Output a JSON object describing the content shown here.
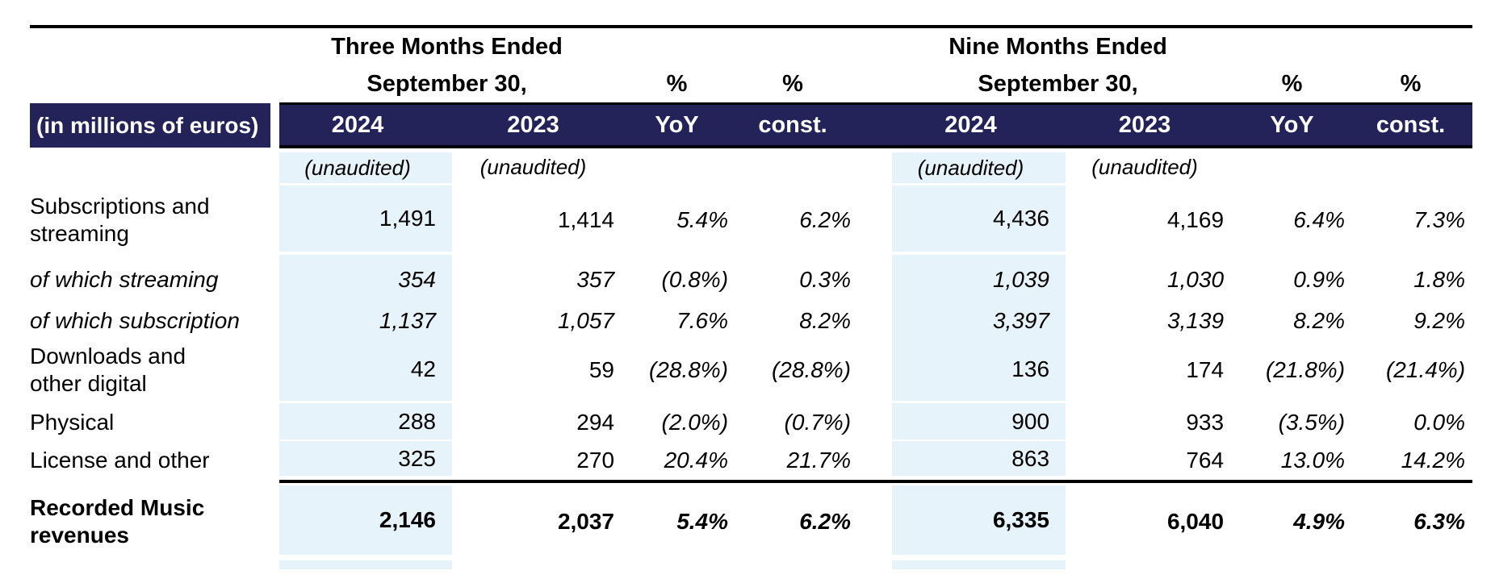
{
  "colors": {
    "navy": "#232259",
    "light_blue": "#e7f3fa",
    "rule_black": "#000000"
  },
  "header": {
    "unit_label": "(in millions of euros)",
    "pct": "%",
    "unaudited": "(unaudited)",
    "groups": [
      {
        "line1": "Three Months Ended",
        "line2": "September 30,"
      },
      {
        "line1": "Nine Months Ended",
        "line2": "September 30,"
      }
    ],
    "columns": {
      "y2024": "2024",
      "y2023": "2023",
      "yoy": "YoY",
      "const_": "const."
    }
  },
  "rows": [
    {
      "label": "Subscriptions and\nstreaming",
      "tm": {
        "y2024": "1,491",
        "y2023": "1,414",
        "yoy": "5.4%",
        "const_": "6.2%"
      },
      "nm": {
        "y2024": "4,436",
        "y2023": "4,169",
        "yoy": "6.4%",
        "const_": "7.3%"
      }
    },
    {
      "label": "of which streaming",
      "tm": {
        "y2024": "354",
        "y2023": "357",
        "yoy": "(0.8%)",
        "const_": "0.3%"
      },
      "nm": {
        "y2024": "1,039",
        "y2023": "1,030",
        "yoy": "0.9%",
        "const_": "1.8%"
      }
    },
    {
      "label": "of which subscription",
      "tm": {
        "y2024": "1,137",
        "y2023": "1,057",
        "yoy": "7.6%",
        "const_": "8.2%"
      },
      "nm": {
        "y2024": "3,397",
        "y2023": "3,139",
        "yoy": "8.2%",
        "const_": "9.2%"
      }
    },
    {
      "label": "Downloads and\nother digital",
      "tm": {
        "y2024": "42",
        "y2023": "59",
        "yoy": "(28.8%)",
        "const_": "(28.8%)"
      },
      "nm": {
        "y2024": "136",
        "y2023": "174",
        "yoy": "(21.8%)",
        "const_": "(21.4%)"
      }
    },
    {
      "label": "Physical",
      "tm": {
        "y2024": "288",
        "y2023": "294",
        "yoy": "(2.0%)",
        "const_": "(0.7%)"
      },
      "nm": {
        "y2024": "900",
        "y2023": "933",
        "yoy": "(3.5%)",
        "const_": "0.0%"
      }
    },
    {
      "label": "License and other",
      "tm": {
        "y2024": "325",
        "y2023": "270",
        "yoy": "20.4%",
        "const_": "21.7%"
      },
      "nm": {
        "y2024": "863",
        "y2023": "764",
        "yoy": "13.0%",
        "const_": "14.2%"
      }
    },
    {
      "label": "Recorded Music\nrevenues",
      "tm": {
        "y2024": "2,146",
        "y2023": "2,037",
        "yoy": "5.4%",
        "const_": "6.2%"
      },
      "nm": {
        "y2024": "6,335",
        "y2023": "6,040",
        "yoy": "4.9%",
        "const_": "6.3%"
      }
    }
  ]
}
